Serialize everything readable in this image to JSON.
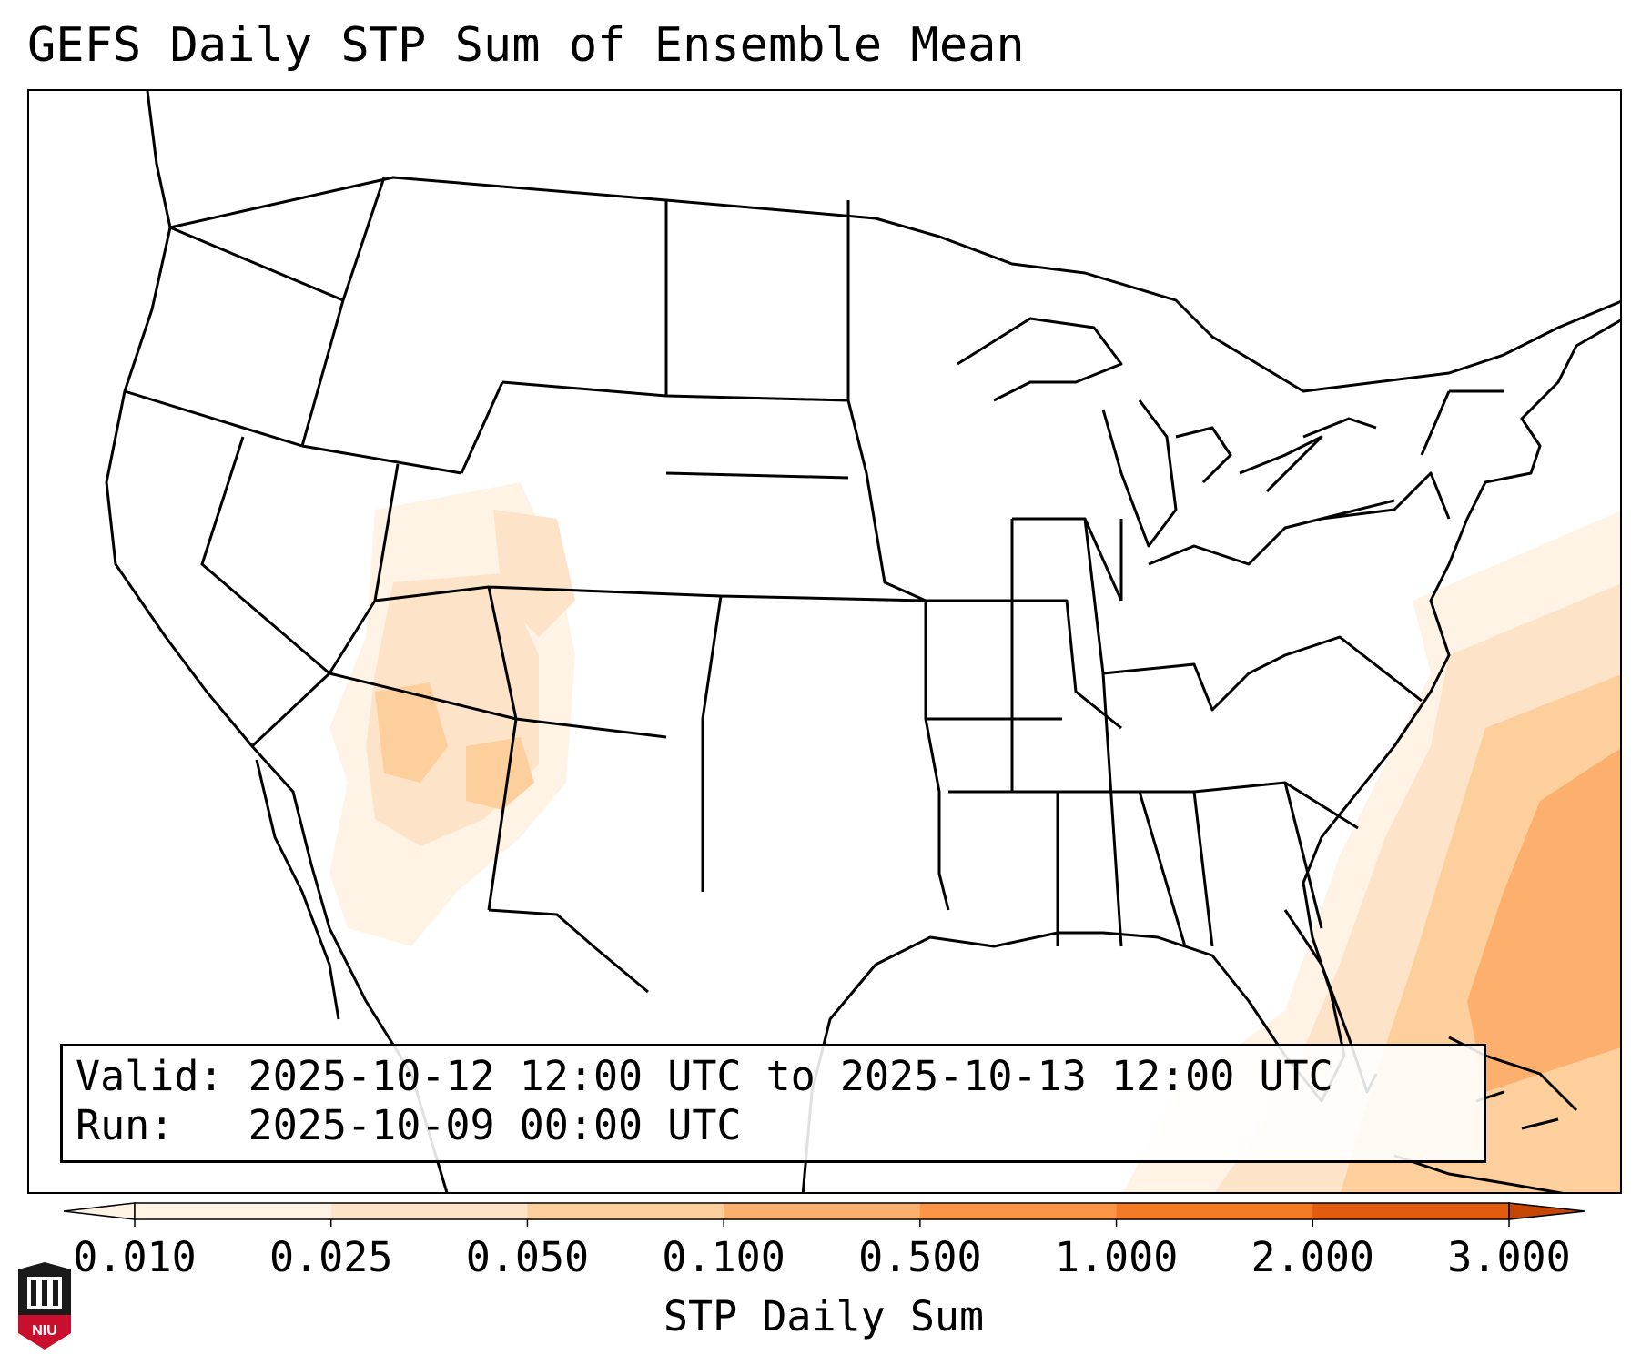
{
  "title": "GEFS Daily STP Sum of Ensemble Mean",
  "info": {
    "valid_label": "Valid:",
    "valid_value": "2025-10-12 12:00 UTC to 2025-10-13 12:00 UTC",
    "run_label": "Run:",
    "run_value": "2025-10-09 00:00 UTC"
  },
  "colorbar": {
    "label": "STP Daily Sum",
    "ticks": [
      "0.010",
      "0.025",
      "0.050",
      "0.100",
      "0.500",
      "1.000",
      "2.000",
      "3.000"
    ],
    "colors": [
      "#fff3e6",
      "#fde3c8",
      "#fdcf9c",
      "#fdb06d",
      "#fd9546",
      "#f57a25",
      "#e35b0e",
      "#c44504"
    ],
    "extend": "both"
  },
  "map": {
    "projection": "lambert-conformal",
    "region": "CONUS",
    "field": "STP daily sum",
    "land_color": "#ffffff",
    "border_color": "#000000"
  },
  "logo": {
    "text": "NIU",
    "icon": "niu-tower-logo",
    "color": "#c8102e"
  }
}
